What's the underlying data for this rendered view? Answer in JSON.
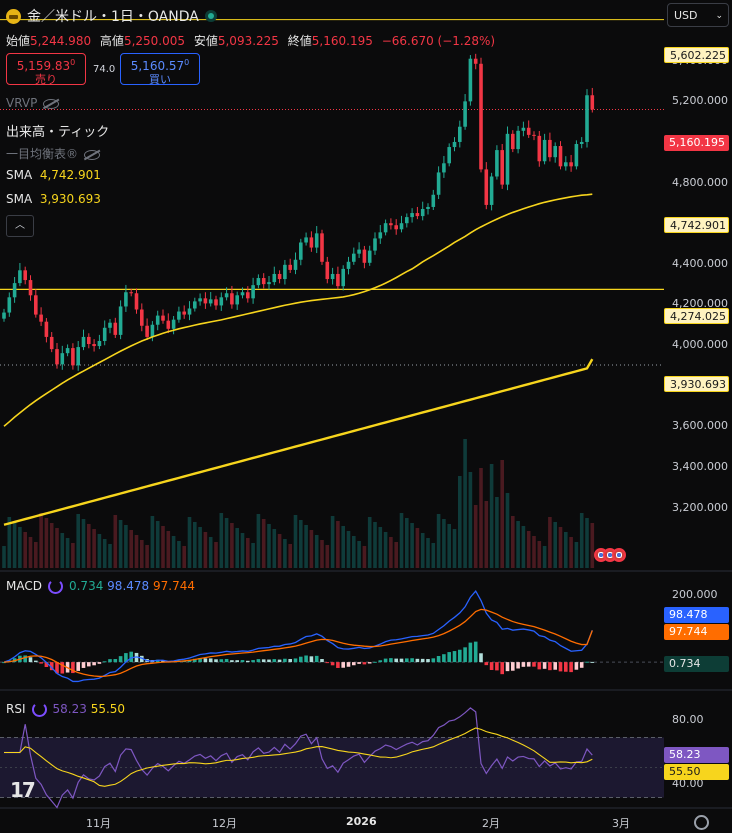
{
  "header": {
    "symbol_title": "金／米ドル・1日・OANDA",
    "ohlc": {
      "open_label": "始値",
      "open_value": "5,244.980",
      "high_label": "高値",
      "high_value": "5,250.005",
      "low_label": "安値",
      "low_value": "5,093.225",
      "close_label": "終値",
      "close_value": "5,160.195",
      "change": "−66.670 (−1.28%)"
    },
    "sell_price": "5,159.83",
    "sell_sup": "0",
    "sell_label": "売り",
    "spread": "74.0",
    "buy_price": "5,160.57",
    "buy_sup": "0",
    "buy_label": "買い",
    "currency": "USD"
  },
  "indicators": {
    "vrvp": "VRVP",
    "volume_tick": "出来高・ティック",
    "ichimoku": "一目均衡表®",
    "sma1_label": "SMA",
    "sma1_value": "4,742.901",
    "sma2_label": "SMA",
    "sma2_value": "3,930.693"
  },
  "price_axis": {
    "ticks": [
      "5,400.000",
      "5,200.000",
      "5,000.000",
      "4,800.000",
      "4,600.000",
      "4,400.000",
      "4,200.000",
      "4,000.000",
      "3,800.000",
      "3,600.000",
      "3,400.000",
      "3,200.000"
    ],
    "tags": {
      "high_line": "5,602.225",
      "last_price": "5,160.195",
      "sma1": "4,742.901",
      "hline": "4,274.025",
      "sma2": "3,930.693"
    }
  },
  "macd": {
    "label": "MACD",
    "hist": "0.734",
    "macd": "98.478",
    "signal": "97.744",
    "axis_tick": "200.000",
    "tags": {
      "macd": "98.478",
      "signal": "97.744",
      "hist": "0.734"
    }
  },
  "rsi": {
    "label": "RSI",
    "value": "58.23",
    "ma": "55.50",
    "axis_ticks": [
      "80.00",
      "40.00"
    ],
    "tags": {
      "rsi": "58.23",
      "ma": "55.50"
    }
  },
  "time_axis": {
    "labels": [
      "11月",
      "12月",
      "2026",
      "2月",
      "3月"
    ]
  },
  "colors": {
    "up": "#22ab94",
    "down": "#f23645",
    "sma": "#f7d51d",
    "macd_line": "#2962ff",
    "signal_line": "#ff6d00",
    "rsi_line": "#7e57c2"
  },
  "chart_data": {
    "type": "candlestick",
    "interval": "1D",
    "price_range": [
      3040,
      5640
    ],
    "macd_range": [
      -80,
      260
    ],
    "rsi_range": [
      25,
      95
    ],
    "closes": [
      4160,
      4235,
      4305,
      4368,
      4320,
      4245,
      4150,
      4115,
      4040,
      3980,
      3905,
      3960,
      3985,
      3900,
      3990,
      4040,
      4005,
      3995,
      4020,
      4085,
      4110,
      4050,
      4190,
      4260,
      4255,
      4175,
      4095,
      4040,
      4100,
      4145,
      4120,
      4080,
      4125,
      4165,
      4150,
      4180,
      4215,
      4230,
      4205,
      4225,
      4195,
      4235,
      4255,
      4200,
      4245,
      4260,
      4230,
      4295,
      4330,
      4300,
      4310,
      4350,
      4325,
      4395,
      4370,
      4420,
      4505,
      4530,
      4480,
      4550,
      4410,
      4325,
      4350,
      4290,
      4375,
      4410,
      4450,
      4470,
      4405,
      4465,
      4525,
      4555,
      4600,
      4590,
      4570,
      4600,
      4630,
      4650,
      4635,
      4670,
      4680,
      4740,
      4850,
      4895,
      4975,
      5000,
      5075,
      5200,
      5410,
      5385,
      4865,
      4690,
      4830,
      4960,
      4790,
      5040,
      4965,
      5055,
      5070,
      5035,
      5030,
      4905,
      5010,
      4925,
      4980,
      4880,
      4900,
      4880,
      4990,
      5000,
      5230,
      5160
    ],
    "sma1": [
      3600,
      3622,
      3645,
      3666,
      3687,
      3707,
      3726,
      3744,
      3761,
      3778,
      3795,
      3812,
      3828,
      3843,
      3858,
      3872,
      3886,
      3900,
      3914,
      3928,
      3942,
      3956,
      3970,
      3983,
      3996,
      4008,
      4020,
      4030,
      4040,
      4049,
      4058,
      4066,
      4073,
      4080,
      4086,
      4092,
      4098,
      4104,
      4109,
      4114,
      4119,
      4124,
      4130,
      4136,
      4142,
      4148,
      4154,
      4160,
      4166,
      4172,
      4178,
      4184,
      4190,
      4196,
      4201,
      4206,
      4211,
      4215,
      4219,
      4222,
      4225,
      4228,
      4231,
      4234,
      4237,
      4242,
      4248,
      4255,
      4263,
      4272,
      4282,
      4293,
      4305,
      4318,
      4332,
      4347,
      4362,
      4375,
      4392,
      4410,
      4425,
      4440,
      4456,
      4472,
      4488,
      4505,
      4520,
      4535,
      4552,
      4568,
      4582,
      4595,
      4608,
      4620,
      4632,
      4643,
      4653,
      4662,
      4671,
      4680,
      4688,
      4696,
      4703,
      4709,
      4715,
      4720,
      4725,
      4730,
      4734,
      4738,
      4740,
      4742.9
    ],
    "sma2": [
      3115,
      3122,
      3129,
      3136,
      3143,
      3150,
      3157,
      3164,
      3171,
      3178,
      3185,
      3192,
      3199,
      3206,
      3213,
      3220,
      3227,
      3234,
      3241,
      3248,
      3255,
      3262,
      3269,
      3276,
      3283,
      3290,
      3297,
      3304,
      3311,
      3318,
      3325,
      3332,
      3339,
      3346,
      3353,
      3360,
      3367,
      3374,
      3381,
      3388,
      3395,
      3402,
      3409,
      3416,
      3423,
      3430,
      3437,
      3444,
      3451,
      3458,
      3465,
      3472,
      3479,
      3486,
      3493,
      3500,
      3507,
      3514,
      3521,
      3528,
      3535,
      3542,
      3549,
      3556,
      3563,
      3570,
      3577,
      3584,
      3591,
      3598,
      3605,
      3612,
      3619,
      3626,
      3633,
      3640,
      3647,
      3654,
      3661,
      3668,
      3675,
      3682,
      3689,
      3696,
      3703,
      3710,
      3717,
      3724,
      3731,
      3738,
      3745,
      3752,
      3759,
      3766,
      3773,
      3780,
      3787,
      3794,
      3801,
      3808,
      3815,
      3822,
      3829,
      3836,
      3843,
      3850,
      3857,
      3864,
      3871,
      3878,
      3885,
      3930.7
    ],
    "reference_lines": [
      5602.225,
      4274.025
    ],
    "macd_last": 98.478,
    "signal_last": 97.744,
    "histogram_last": 0.734,
    "rsi_last": 58.23,
    "rsi_ma_last": 55.5
  }
}
